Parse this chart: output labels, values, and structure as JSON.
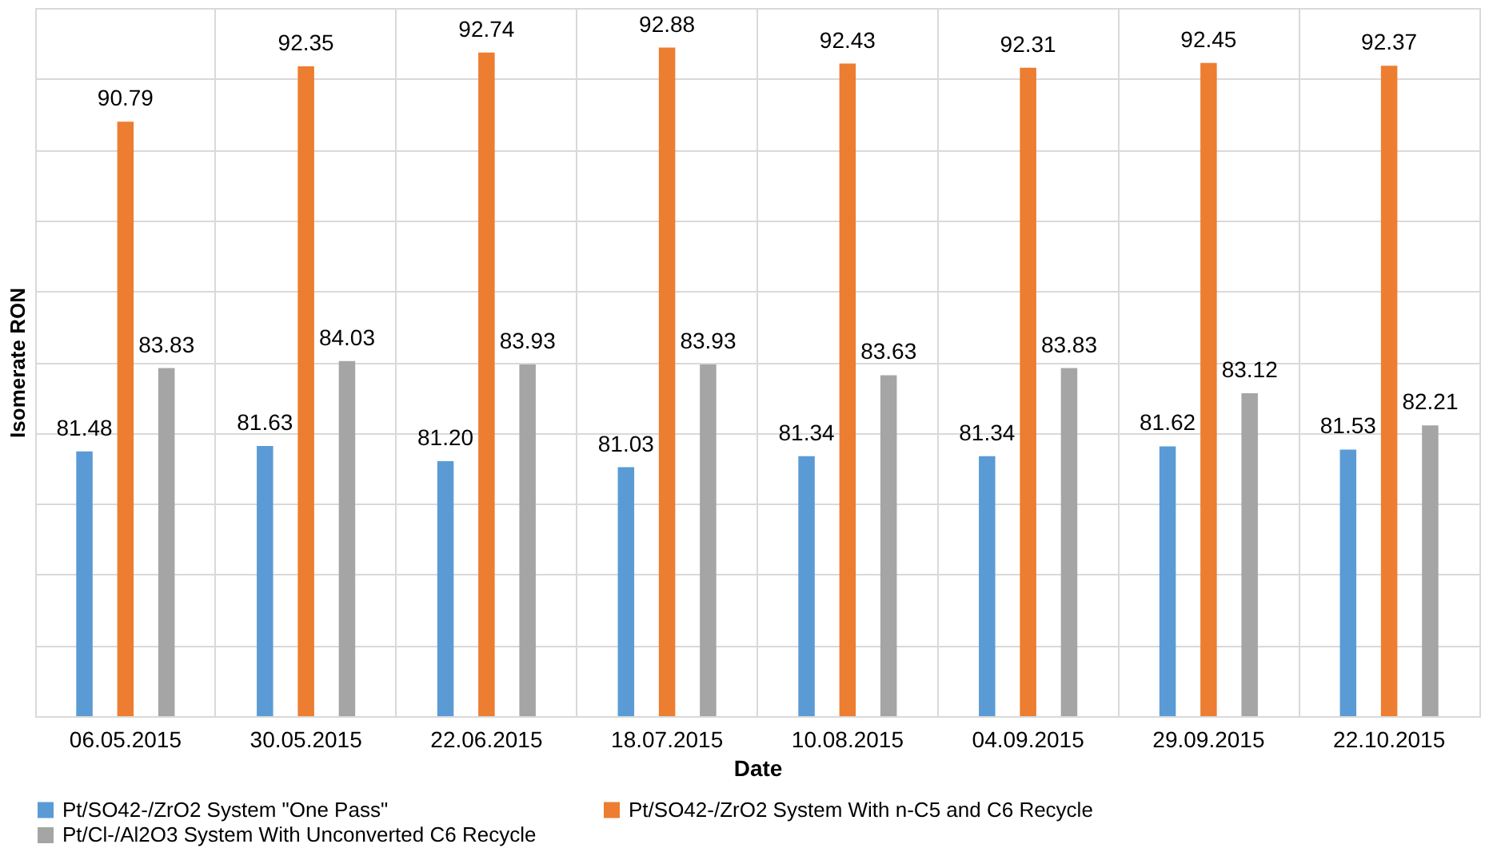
{
  "chart_data": {
    "type": "bar",
    "xlabel": "Date",
    "ylabel": "Isomerate RON",
    "categories": [
      "06.05.2015",
      "30.05.2015",
      "22.06.2015",
      "18.07.2015",
      "10.08.2015",
      "04.09.2015",
      "29.09.2015",
      "22.10.2015"
    ],
    "series": [
      {
        "name": "Pt/SO42-/ZrO2 System \"One Pass\"",
        "color": "#5b9bd5",
        "values": [
          81.48,
          81.63,
          81.2,
          81.03,
          81.34,
          81.34,
          81.62,
          81.53
        ],
        "value_labels": [
          "81.48",
          "81.63",
          "81.20",
          "81.03",
          "81.34",
          "81.34",
          "81.62",
          "81.53"
        ]
      },
      {
        "name": "Pt/SO42-/ZrO2 System With n-C5 and C6 Recycle",
        "color": "#ed7d31",
        "values": [
          90.79,
          92.35,
          92.74,
          92.88,
          92.43,
          92.31,
          92.45,
          92.37
        ],
        "value_labels": [
          "90.79",
          "92.35",
          "92.74",
          "92.88",
          "92.43",
          "92.31",
          "92.45",
          "92.37"
        ]
      },
      {
        "name": "Pt/Cl-/Al2O3 System With Unconverted C6 Recycle",
        "color": "#a5a5a5",
        "values": [
          83.83,
          84.03,
          83.93,
          83.93,
          83.63,
          83.83,
          83.12,
          82.21
        ],
        "value_labels": [
          "83.83",
          "84.03",
          "83.93",
          "83.93",
          "83.63",
          "83.83",
          "83.12",
          "82.21"
        ]
      }
    ],
    "ylim": [
      74,
      94
    ],
    "tick_labels": "x",
    "grid": true,
    "legend": "bottom"
  }
}
